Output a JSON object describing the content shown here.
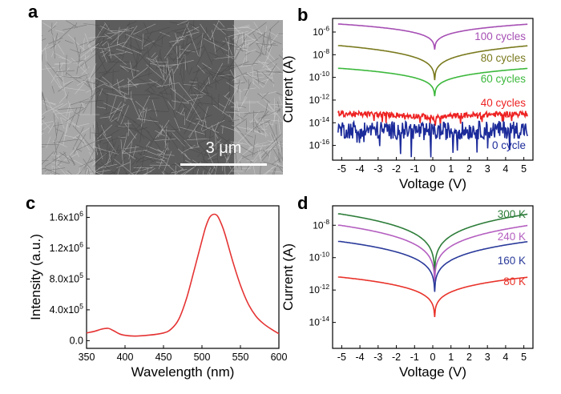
{
  "panels": {
    "a": {
      "label": "a",
      "scalebar": "3 μm"
    },
    "b": {
      "label": "b"
    },
    "c": {
      "label": "c"
    },
    "d": {
      "label": "d"
    }
  },
  "chart_data": [
    {
      "id": "b",
      "type": "line",
      "xlabel": "Voltage (V)",
      "ylabel": "Current (A)",
      "xlim": [
        -5.5,
        5.5
      ],
      "ylim": [
        -17.3,
        -4.8
      ],
      "yscale": "log",
      "xticks": [
        "-5",
        "-4",
        "-3",
        "-2",
        "-1",
        "0",
        "1",
        "2",
        "3",
        "4",
        "5"
      ],
      "yticks": [
        "10^-6",
        "10^-8",
        "10^-10",
        "10^-12",
        "10^-14",
        "10^-16"
      ],
      "series": [
        {
          "name": "100 cycles",
          "color": "#a64fb4",
          "base_exp": -5.3,
          "min_exp": -8.4,
          "noise": 0
        },
        {
          "name": "80 cycles",
          "color": "#7a7a1f",
          "base_exp": -7.2,
          "min_exp": -11.4,
          "noise": 0
        },
        {
          "name": "60 cycles",
          "color": "#3cb83c",
          "base_exp": -9.2,
          "min_exp": -12.6,
          "noise": 0
        },
        {
          "name": "40 cycles",
          "color": "#ee2222",
          "base_exp": -13.2,
          "min_exp": -14.0,
          "noise": 0.25
        },
        {
          "name": "0 cycle",
          "color": "#1c2b9a",
          "base_exp": -14.6,
          "min_exp": -15.0,
          "noise": 0.8
        }
      ]
    },
    {
      "id": "c",
      "type": "line",
      "xlabel": "Wavelength (nm)",
      "ylabel": "Intensity (a.u.)",
      "xlim": [
        350,
        600
      ],
      "ylim": [
        -100000,
        1750000
      ],
      "xticks": [
        "350",
        "400",
        "450",
        "500",
        "550",
        "600"
      ],
      "yticks": [
        {
          "label": "0.0",
          "value": 0
        },
        {
          "label": "4.0x10^5",
          "value": 400000
        },
        {
          "label": "8.0x10^5",
          "value": 800000
        },
        {
          "label": "1.2x10^6",
          "value": 1200000
        },
        {
          "label": "1.6x10^6",
          "value": 1600000
        }
      ],
      "series": [
        {
          "name": "",
          "color": "#e53333",
          "x": [
            350,
            360,
            370,
            378,
            385,
            395,
            410,
            430,
            450,
            460,
            470,
            480,
            490,
            500,
            505,
            510,
            515,
            520,
            525,
            530,
            540,
            550,
            560,
            570,
            580,
            590,
            600
          ],
          "y": [
            100000,
            120000,
            150000,
            160000,
            130000,
            80000,
            60000,
            70000,
            100000,
            150000,
            280000,
            550000,
            920000,
            1300000,
            1480000,
            1600000,
            1640000,
            1620000,
            1520000,
            1380000,
            1030000,
            720000,
            480000,
            320000,
            220000,
            150000,
            90000
          ]
        }
      ]
    },
    {
      "id": "d",
      "type": "line",
      "xlabel": "Voltage (V)",
      "ylabel": "Current (A)",
      "xlim": [
        -5.5,
        5.5
      ],
      "ylim": [
        -15.6,
        -6.8
      ],
      "yscale": "log",
      "xticks": [
        "-5",
        "-4",
        "-3",
        "-2",
        "-1",
        "0",
        "1",
        "2",
        "3",
        "4",
        "5"
      ],
      "yticks": [
        "10^-8",
        "10^-10",
        "10^-12",
        "10^-14"
      ],
      "series": [
        {
          "name": "300 K",
          "color": "#2e7d3a",
          "base_exp": -7.3,
          "min_exp": -12.3
        },
        {
          "name": "240 K",
          "color": "#b45fc0",
          "base_exp": -8.0,
          "min_exp": -12.8
        },
        {
          "name": "160 K",
          "color": "#2a3a9a",
          "base_exp": -9.0,
          "min_exp": -13.3
        },
        {
          "name": "80 K",
          "color": "#e8332a",
          "base_exp": -11.2,
          "min_exp": -14.6
        }
      ]
    }
  ]
}
